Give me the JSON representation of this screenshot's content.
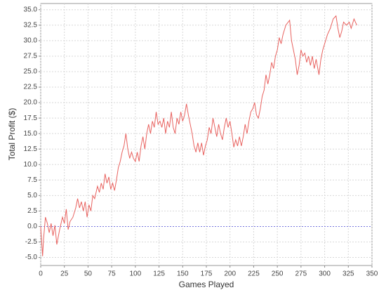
{
  "chart_data": {
    "type": "line",
    "xlabel": "Games Played",
    "ylabel": "Total Profit ($)",
    "x": [
      0,
      2,
      3,
      5,
      7,
      9,
      11,
      13,
      15,
      17,
      20,
      23,
      25,
      27,
      29,
      31,
      34,
      37,
      39,
      41,
      43,
      45,
      47,
      49,
      51,
      53,
      55,
      57,
      60,
      62,
      64,
      66,
      68,
      70,
      72,
      74,
      76,
      78,
      80,
      82,
      84,
      86,
      88,
      90,
      92,
      94,
      96,
      98,
      100,
      102,
      104,
      106,
      108,
      110,
      112,
      114,
      116,
      118,
      120,
      122,
      124,
      126,
      128,
      130,
      132,
      134,
      136,
      138,
      140,
      142,
      144,
      146,
      148,
      150,
      152,
      154,
      156,
      158,
      160,
      162,
      164,
      166,
      168,
      170,
      172,
      174,
      176,
      178,
      180,
      182,
      184,
      186,
      188,
      190,
      192,
      194,
      196,
      198,
      200,
      202,
      204,
      206,
      208,
      210,
      212,
      214,
      216,
      218,
      220,
      222,
      224,
      226,
      228,
      230,
      232,
      234,
      236,
      238,
      240,
      242,
      244,
      246,
      248,
      250,
      252,
      254,
      256,
      259,
      263,
      265,
      267,
      269,
      271,
      273,
      275,
      277,
      279,
      281,
      283,
      285,
      287,
      289,
      291,
      294,
      296,
      298,
      300,
      303,
      306,
      309,
      312,
      314,
      316,
      318,
      320,
      323,
      326,
      328,
      331,
      334
    ],
    "series": [
      {
        "color": "#e8625f",
        "values": [
          0,
          -4.8,
          -2,
          1.5,
          0.5,
          -1,
          0.5,
          -1.5,
          0.2,
          -2.9,
          -0.5,
          1.5,
          0.5,
          2.8,
          -0.5,
          0.8,
          1.5,
          3,
          4.5,
          3,
          4,
          2.5,
          4,
          1.5,
          3.5,
          2.5,
          5,
          4.5,
          6.5,
          5.5,
          7,
          6,
          8.5,
          7,
          8,
          6,
          7,
          5.8,
          7.5,
          9.5,
          10.5,
          12,
          13,
          15,
          12.5,
          11,
          12,
          11,
          10.5,
          12,
          10.5,
          13,
          14.5,
          12.5,
          15,
          16.5,
          15,
          17,
          16,
          18.5,
          16.5,
          17,
          16,
          17.5,
          15,
          17,
          16,
          18.5,
          16,
          15,
          17.5,
          16.5,
          18.5,
          17,
          18,
          19.8,
          18,
          16.5,
          15,
          13,
          12,
          13.5,
          12,
          13.5,
          11.5,
          13,
          14,
          16,
          15,
          17.5,
          16,
          14.5,
          16.5,
          15,
          14,
          16,
          17.5,
          16,
          17,
          15,
          12.8,
          14,
          13,
          14.5,
          13,
          14.5,
          16.5,
          15,
          17,
          18.5,
          19,
          20,
          18,
          17.5,
          19,
          21,
          22,
          24.5,
          23,
          24.5,
          26.5,
          25.5,
          27.5,
          28.5,
          30.5,
          29.5,
          31,
          32.5,
          33.3,
          30,
          28.5,
          27,
          24.5,
          26,
          28.5,
          27.5,
          28,
          26.5,
          27.5,
          26,
          27.5,
          25.5,
          27,
          24.5,
          27,
          28.5,
          29.5,
          31,
          32,
          33.5,
          34,
          32,
          30.5,
          31.5,
          33,
          32.5,
          33,
          32,
          33.5,
          32.5
        ]
      }
    ],
    "xlim": [
      0,
      350
    ],
    "xticks": [
      0,
      25,
      50,
      75,
      100,
      125,
      150,
      175,
      200,
      225,
      250,
      275,
      300,
      325,
      350
    ],
    "ylim": [
      -6.3,
      36
    ],
    "yticks": [
      {
        "value": -5,
        "label": "-5.0"
      },
      {
        "value": -2.5,
        "label": "-2.5"
      },
      {
        "value": 0,
        "label": "0.0"
      },
      {
        "value": 2.5,
        "label": "2.5"
      },
      {
        "value": 5,
        "label": "5.0"
      },
      {
        "value": 7.5,
        "label": "7.5"
      },
      {
        "value": 10,
        "label": "10.0"
      },
      {
        "value": 12.5,
        "label": "12.5"
      },
      {
        "value": 15,
        "label": "15.0"
      },
      {
        "value": 17.5,
        "label": "17.5"
      },
      {
        "value": 20,
        "label": "20.0"
      },
      {
        "value": 22.5,
        "label": "22.5"
      },
      {
        "value": 25,
        "label": "25.0"
      },
      {
        "value": 27.5,
        "label": "27.5"
      },
      {
        "value": 30,
        "label": "30.0"
      },
      {
        "value": 32.5,
        "label": "32.5"
      },
      {
        "value": 35,
        "label": "35.0"
      }
    ],
    "grid": true,
    "zero_line_color": "#7777dd"
  }
}
